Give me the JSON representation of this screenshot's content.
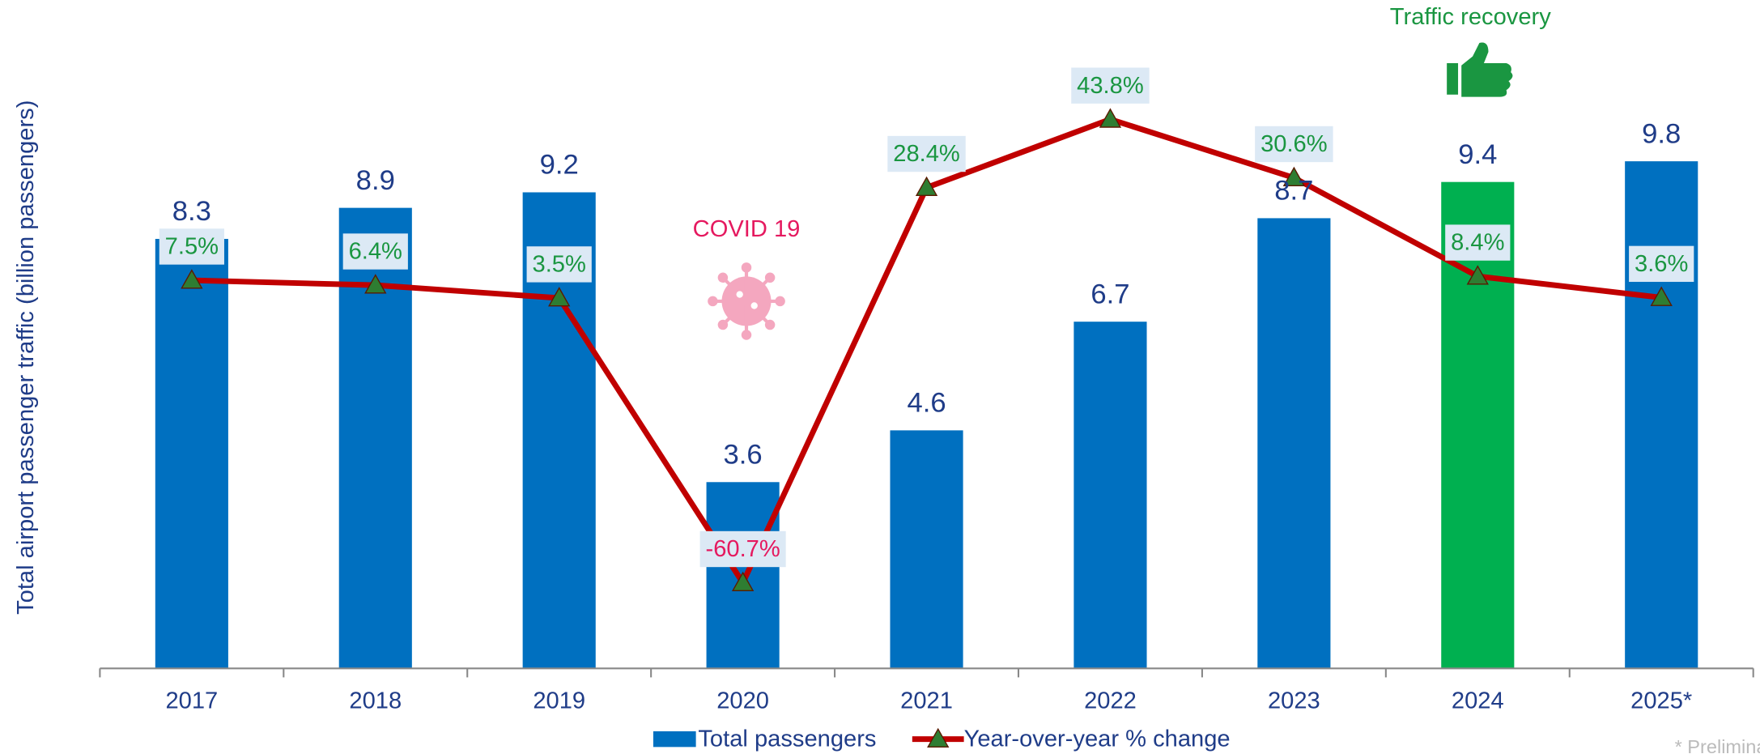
{
  "chart_data": {
    "type": "bar-line",
    "y_axis_label": "Total airport passenger traffic (billion passengers)",
    "categories": [
      "2017",
      "2018",
      "2019",
      "2020",
      "2021",
      "2022",
      "2023",
      "2024",
      "2025*"
    ],
    "ylim": [
      0,
      12
    ],
    "y2lim": [
      -80,
      60
    ],
    "series": [
      {
        "name": "Total passengers",
        "type": "bar",
        "color": "#0070c0",
        "colors": [
          "#0070c0",
          "#0070c0",
          "#0070c0",
          "#0070c0",
          "#0070c0",
          "#0070c0",
          "#0070c0",
          "#00b050",
          "#0070c0"
        ],
        "label_color": "#1f3c88",
        "values": [
          8.3,
          8.9,
          9.2,
          3.6,
          4.6,
          6.7,
          8.7,
          9.4,
          9.8
        ]
      },
      {
        "name": "Year-over-year % change",
        "type": "line",
        "axis": "y2",
        "color": "#c00000",
        "marker_color": "#2e7d32",
        "label_color": "#1a9641",
        "negative_label_color": "#e5195f",
        "values": [
          7.5,
          6.4,
          3.5,
          -60.7,
          28.4,
          43.8,
          30.6,
          8.4,
          3.6
        ],
        "value_labels": [
          "7.5%",
          "6.4%",
          "3.5%",
          "-60.7%",
          "28.4%",
          "43.8%",
          "30.6%",
          "8.4%",
          "3.6%"
        ]
      }
    ],
    "annotations": [
      "COVID 19",
      "Traffic recovery"
    ],
    "footnote": "* Preliminary figures"
  }
}
